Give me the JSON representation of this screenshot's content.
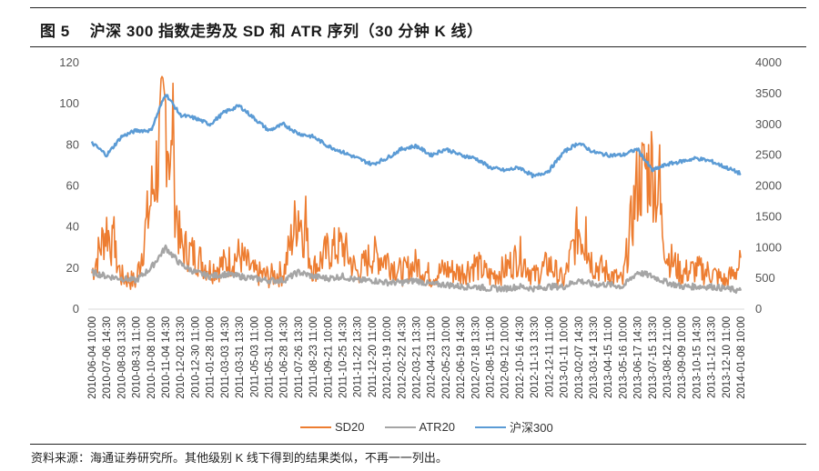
{
  "figure": {
    "number": "图 5",
    "title": "沪深 300 指数走势及 SD 和 ATR 序列（30 分钟 K 线）"
  },
  "source_note": "资料来源：海通证券研究所。其他级别 K 线下得到的结果类似，不再一一列出。",
  "legend": [
    {
      "name": "SD20",
      "color": "#ED7D31"
    },
    {
      "name": "ATR20",
      "color": "#A5A5A5"
    },
    {
      "name": "沪深300",
      "color": "#5B9BD5"
    }
  ],
  "chart_data": {
    "type": "line",
    "title": "沪深 300 指数走势及 SD 和 ATR 序列（30 分钟 K 线）",
    "xlabel": "",
    "ylabel_left": "",
    "ylabel_right": "",
    "ylim_left": [
      0,
      120
    ],
    "ylim_right": [
      0,
      4000
    ],
    "yticks_left": [
      0,
      20,
      40,
      60,
      80,
      100,
      120
    ],
    "yticks_right": [
      0,
      500,
      1000,
      1500,
      2000,
      2500,
      3000,
      3500,
      4000
    ],
    "grid": false,
    "legend_position": "bottom",
    "x": [
      "2010-06-04 10:00",
      "2010-07-06 14:30",
      "2010-08-03 13:30",
      "2010-08-31 11:00",
      "2010-10-08 10:00",
      "2010-11-04 14:30",
      "2010-12-02 13:30",
      "2010-12-30 11:00",
      "2011-01-28 10:00",
      "2011-03-03 14:30",
      "2011-03-31 13:30",
      "2011-05-03 11:00",
      "2011-05-31 10:00",
      "2011-06-28 14:30",
      "2011-07-26 13:30",
      "2011-08-23 11:00",
      "2011-09-21 10:00",
      "2011-10-25 14:30",
      "2011-11-22 13:30",
      "2011-12-20 11:00",
      "2012-01-19 10:00",
      "2012-02-22 14:30",
      "2012-03-21 13:30",
      "2012-04-23 11:00",
      "2012-05-23 10:00",
      "2012-06-19 14:30",
      "2012-07-18 13:30",
      "2012-08-15 11:00",
      "2012-09-12 10:00",
      "2012-10-16 14:30",
      "2012-11-13 13:30",
      "2012-12-11 11:00",
      "2013-01-11 10:00",
      "2013-02-07 14:30",
      "2013-03-14 13:30",
      "2013-04-15 11:00",
      "2013-05-16 10:00",
      "2013-06-17 14:30",
      "2013-07-15 13:30",
      "2013-08-12 11:00",
      "2013-09-09 10:00",
      "2013-10-15 14:30",
      "2013-11-12 13:30",
      "2013-12-10 11:00",
      "2014-01-08 10:00"
    ],
    "series": [
      {
        "name": "沪深300",
        "axis": "right",
        "color": "#5B9BD5",
        "values": [
          2700,
          2500,
          2800,
          2900,
          2900,
          3500,
          3150,
          3100,
          3000,
          3200,
          3300,
          3100,
          2900,
          3000,
          2850,
          2800,
          2650,
          2550,
          2450,
          2350,
          2450,
          2600,
          2650,
          2500,
          2600,
          2500,
          2450,
          2300,
          2250,
          2300,
          2150,
          2250,
          2550,
          2700,
          2550,
          2500,
          2500,
          2600,
          2250,
          2350,
          2400,
          2450,
          2400,
          2300,
          2200
        ]
      },
      {
        "name": "SD20",
        "axis": "left",
        "color": "#ED7D31",
        "values": [
          20,
          45,
          18,
          15,
          60,
          110,
          35,
          30,
          22,
          25,
          30,
          20,
          18,
          20,
          55,
          22,
          32,
          35,
          20,
          30,
          28,
          20,
          25,
          18,
          22,
          20,
          25,
          18,
          22,
          30,
          18,
          25,
          15,
          45,
          25,
          20,
          15,
          70,
          80,
          30,
          20,
          22,
          20,
          15,
          25
        ]
      },
      {
        "name": "ATR20",
        "axis": "left",
        "color": "#A5A5A5",
        "values": [
          18,
          16,
          15,
          14,
          20,
          30,
          22,
          18,
          16,
          17,
          16,
          15,
          14,
          14,
          18,
          16,
          15,
          16,
          14,
          14,
          13,
          13,
          14,
          12,
          12,
          11,
          11,
          10,
          10,
          11,
          10,
          11,
          11,
          14,
          12,
          12,
          11,
          18,
          16,
          13,
          11,
          11,
          11,
          10,
          9
        ]
      }
    ]
  }
}
